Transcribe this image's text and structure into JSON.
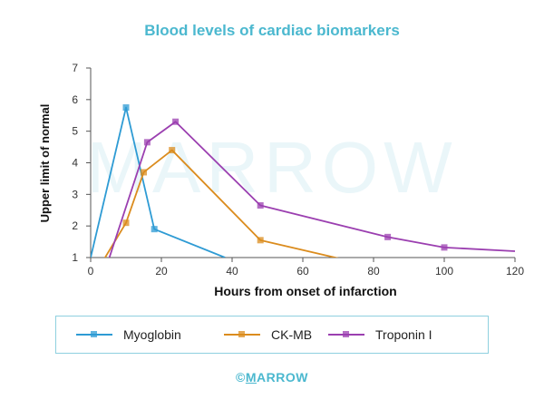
{
  "chart_data": {
    "type": "line",
    "title": "Blood levels of cardiac biomarkers",
    "xlabel": "Hours from onset of infarction",
    "ylabel": "Upper limit of normal",
    "xlim": [
      0,
      120
    ],
    "ylim": [
      1,
      7
    ],
    "xticks": [
      0,
      20,
      40,
      60,
      80,
      100,
      120
    ],
    "yticks": [
      1,
      2,
      3,
      4,
      5,
      6,
      7
    ],
    "grid": false,
    "legend_position": "bottom",
    "watermark": "MARROW",
    "series": [
      {
        "name": "Myoglobin",
        "color": "#2e9bd4",
        "marker": "square",
        "points": [
          [
            0,
            1
          ],
          [
            10,
            5.75
          ],
          [
            18,
            1.9
          ],
          [
            38,
            1.0
          ]
        ]
      },
      {
        "name": "CK-MB",
        "color": "#db8c1e",
        "marker": "square",
        "points": [
          [
            3,
            0.8
          ],
          [
            10,
            2.1
          ],
          [
            15,
            3.7
          ],
          [
            23,
            4.4
          ],
          [
            48,
            1.55
          ],
          [
            73,
            0.9
          ]
        ]
      },
      {
        "name": "Troponin I",
        "color": "#9b3fb0",
        "marker": "square",
        "points": [
          [
            5,
            0.9
          ],
          [
            16,
            4.65
          ],
          [
            24,
            5.3
          ],
          [
            48,
            2.65
          ],
          [
            84,
            1.65
          ],
          [
            100,
            1.32
          ],
          [
            120,
            1.2
          ]
        ]
      }
    ]
  },
  "footer": {
    "copyright": "©",
    "brand_first": "M",
    "brand_rest": "ARROW"
  }
}
